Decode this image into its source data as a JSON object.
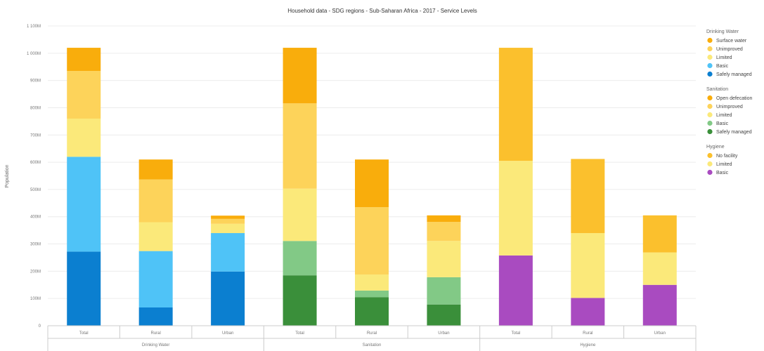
{
  "chart_data": {
    "type": "bar",
    "stacked": true,
    "title": "Household data - SDG regions - Sub-Saharan Africa - 2017 - Service Levels",
    "ylabel": "Population",
    "xlabel": "",
    "ylim": [
      0,
      1100000000
    ],
    "yticks": [
      0,
      100000000,
      200000000,
      300000000,
      400000000,
      500000000,
      600000000,
      700000000,
      800000000,
      900000000,
      1000000000,
      1100000000
    ],
    "ytick_labels": [
      "0",
      "100M",
      "200M",
      "300M",
      "400M",
      "500M",
      "600M",
      "700M",
      "800M",
      "900M",
      "1 000M",
      "1 100M"
    ],
    "grid": true,
    "legend_position": "right",
    "groups": [
      {
        "name": "Drinking Water",
        "categories": [
          "Total",
          "Rural",
          "Urban"
        ],
        "series": [
          {
            "name": "Safely managed",
            "color": "#0b7fd0",
            "values": [
              272000000,
              67000000,
              199000000
            ]
          },
          {
            "name": "Basic",
            "color": "#4fc3f7",
            "values": [
              348000000,
              207000000,
              141000000
            ]
          },
          {
            "name": "Limited",
            "color": "#fbe97a",
            "values": [
              140000000,
              106000000,
              34000000
            ]
          },
          {
            "name": "Unimproved",
            "color": "#fdd35a",
            "values": [
              175000000,
              157000000,
              18000000
            ]
          },
          {
            "name": "Surface water",
            "color": "#f9ad0c",
            "values": [
              85000000,
              73000000,
              12000000
            ]
          }
        ]
      },
      {
        "name": "Sanitation",
        "categories": [
          "Total",
          "Rural",
          "Urban"
        ],
        "series": [
          {
            "name": "Safely managed",
            "color": "#3a8f3a",
            "values": [
              185000000,
              105000000,
              78000000
            ]
          },
          {
            "name": "Basic",
            "color": "#82c986",
            "values": [
              126000000,
              24000000,
              100000000
            ]
          },
          {
            "name": "Limited",
            "color": "#fbe97a",
            "values": [
              192000000,
              59000000,
              133000000
            ]
          },
          {
            "name": "Unimproved",
            "color": "#fdd35a",
            "values": [
              313000000,
              247000000,
              70000000
            ]
          },
          {
            "name": "Open defecation",
            "color": "#f9ad0c",
            "values": [
              204000000,
              175000000,
              24000000
            ]
          }
        ]
      },
      {
        "name": "Hygiene",
        "categories": [
          "Total",
          "Rural",
          "Urban"
        ],
        "series": [
          {
            "name": "Basic",
            "color": "#a94bc0",
            "values": [
              258000000,
              102000000,
              150000000
            ]
          },
          {
            "name": "Limited",
            "color": "#fbe97a",
            "values": [
              347000000,
              238000000,
              119000000
            ]
          },
          {
            "name": "No facility",
            "color": "#fbc02d",
            "values": [
              415000000,
              272000000,
              136000000
            ]
          }
        ]
      }
    ],
    "legend": [
      {
        "title": "Drinking Water",
        "items": [
          {
            "label": "Surface water",
            "color": "#f9ad0c"
          },
          {
            "label": "Unimproved",
            "color": "#fdd35a"
          },
          {
            "label": "Limited",
            "color": "#fbe97a"
          },
          {
            "label": "Basic",
            "color": "#4fc3f7"
          },
          {
            "label": "Safely managed",
            "color": "#0b7fd0"
          }
        ]
      },
      {
        "title": "Sanitation",
        "items": [
          {
            "label": "Open defecation",
            "color": "#f9ad0c"
          },
          {
            "label": "Unimproved",
            "color": "#fdd35a"
          },
          {
            "label": "Limited",
            "color": "#fbe97a"
          },
          {
            "label": "Basic",
            "color": "#82c986"
          },
          {
            "label": "Safely managed",
            "color": "#3a8f3a"
          }
        ]
      },
      {
        "title": "Hygiene",
        "items": [
          {
            "label": "No facility",
            "color": "#fbc02d"
          },
          {
            "label": "Limited",
            "color": "#fbe97a"
          },
          {
            "label": "Basic",
            "color": "#a94bc0"
          }
        ]
      }
    ]
  }
}
